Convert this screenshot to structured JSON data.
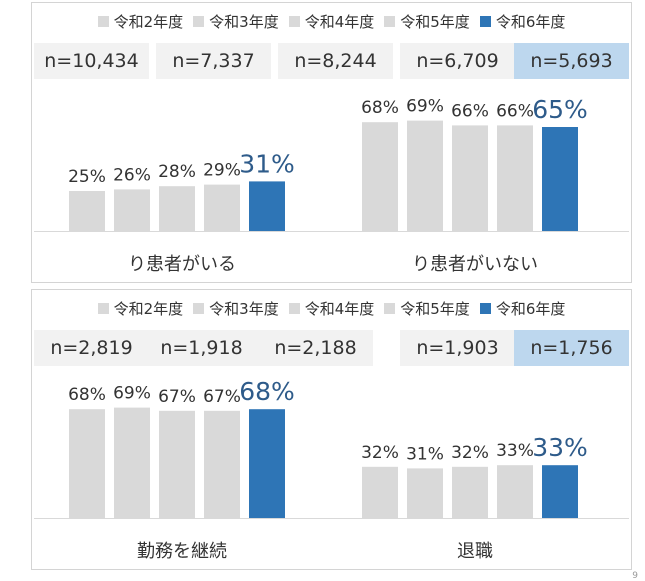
{
  "page_number": "9",
  "colors": {
    "previous": "#d9d9d9",
    "latest": "#2e75b6",
    "n_cell": "#f2f2f2",
    "n_cell_latest": "#bdd7ee"
  },
  "legend": [
    "令和2年度",
    "令和3年度",
    "令和4年度",
    "令和5年度",
    "令和6年度"
  ],
  "chart_data": [
    {
      "type": "bar",
      "categories": [
        "り患者がいる",
        "り患者がいない"
      ],
      "series_names": [
        "令和2年度",
        "令和3年度",
        "令和4年度",
        "令和5年度",
        "令和6年度"
      ],
      "sample_sizes": [
        "n=10,434",
        "n=7,337",
        "n=8,244",
        "n=6,709",
        "n=5,693"
      ],
      "values": [
        [
          25,
          26,
          28,
          29,
          31
        ],
        [
          68,
          69,
          66,
          66,
          65
        ]
      ],
      "labels": [
        [
          "25%",
          "26%",
          "28%",
          "29%",
          "31%"
        ],
        [
          "68%",
          "69%",
          "66%",
          "66%",
          "65%"
        ]
      ],
      "ylim": [
        0,
        100
      ]
    },
    {
      "type": "bar",
      "categories": [
        "勤務を継続",
        "退職"
      ],
      "series_names": [
        "令和2年度",
        "令和3年度",
        "令和4年度",
        "令和5年度",
        "令和6年度"
      ],
      "sample_sizes": [
        "n=2,819",
        "n=1,918",
        "n=2,188",
        "n=1,903",
        "n=1,756"
      ],
      "values": [
        [
          68,
          69,
          67,
          67,
          68
        ],
        [
          32,
          31,
          32,
          33,
          33
        ]
      ],
      "labels": [
        [
          "68%",
          "69%",
          "67%",
          "67%",
          "68%"
        ],
        [
          "32%",
          "31%",
          "32%",
          "33%",
          "33%"
        ]
      ],
      "ylim": [
        0,
        100
      ]
    }
  ]
}
